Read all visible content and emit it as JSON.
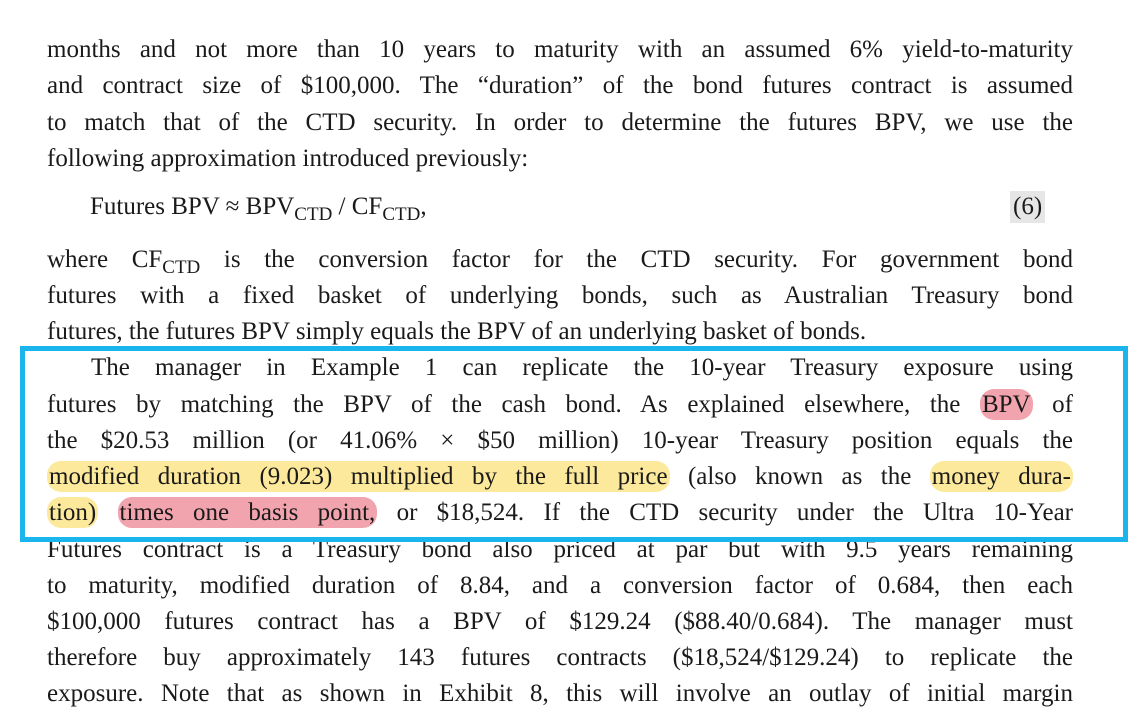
{
  "paragraph1": [
    "months and not more than 10 years to maturity with an assumed 6% yield-to-maturity",
    "and contract size of $100,000. The “duration” of the bond futures contract is assumed",
    "to match that of the CTD security. In order to determine the futures BPV, we use the",
    "following approximation introduced previously:"
  ],
  "equation": {
    "lhs": "Futures BPV ≈ BPV",
    "sub1": "CTD",
    "mid": " / CF",
    "sub2": "CTD",
    "end": ",",
    "number": "(6)"
  },
  "paragraph2": {
    "l1a": "where CF",
    "l1sub": "CTD",
    "l1b": " is the conversion factor for the CTD security. For government bond",
    "l2": "futures with a fixed basket of underlying bonds, such as Australian Treasury bond",
    "l3": "futures, the futures BPV simply equals the BPV of an underlying basket of bonds."
  },
  "paragraph3": {
    "l1": "The manager in Example 1 can replicate the 10-year Treasury exposure using",
    "l2a": "futures by matching the BPV of the cash bond. As explained elsewhere, the ",
    "l2hl": "BPV",
    "l2b": " of",
    "l3": "the $20.53 million (or 41.06% × $50 million) 10-year Treasury position equals the",
    "l4hl1": "modified duration (9.023) multiplied by the full price",
    "l4b": " (also known as the ",
    "l4hl2": "money dura-",
    "l5hl1": "tion)",
    "l5hl2": "times one basis point,",
    "l5b": " or $18,524. If the CTD security under the Ultra 10-Year",
    "l6": "Futures contract is a Treasury bond also priced at par but with 9.5 years remaining",
    "l7": "to maturity, modified duration of 8.84, and a conversion factor of 0.684, then each",
    "l8": "$100,000 futures contract has a BPV of $129.24 ($88.40/0.684). The manager must",
    "l9": "therefore buy approximately 143 futures contracts ($18,524/$129.24) to replicate the",
    "l10": "exposure. Note that as shown in Exhibit 8, this will involve an outlay of initial margin"
  },
  "colors": {
    "box_border": "#1bb5ee",
    "highlight_yellow": "#fde99b",
    "highlight_pink": "#f1a4ad"
  }
}
